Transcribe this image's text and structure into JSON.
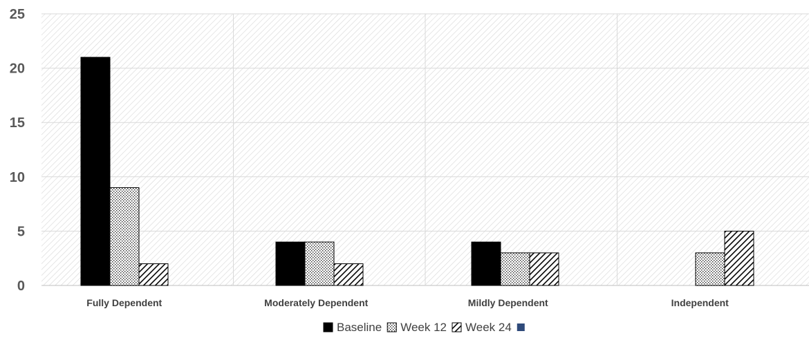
{
  "chart_data": {
    "type": "bar",
    "title": "",
    "xlabel": "",
    "ylabel": "",
    "categories": [
      "Fully Dependent",
      "Moderately Dependent",
      "Mildly Dependent",
      "Independent"
    ],
    "series": [
      {
        "name": "Baseline",
        "values": [
          21,
          4,
          4,
          0
        ],
        "pattern": "solid",
        "color": "#000000"
      },
      {
        "name": "Week 12",
        "values": [
          9,
          4,
          3,
          3
        ],
        "pattern": "dots",
        "color": "#000000"
      },
      {
        "name": "Week 24",
        "values": [
          2,
          2,
          3,
          5
        ],
        "pattern": "hatch",
        "color": "#000000"
      }
    ],
    "ylim": [
      0,
      25
    ],
    "yticks": [
      0,
      5,
      10,
      15,
      20,
      25
    ],
    "grid": true,
    "legend": {
      "position": "bottom",
      "extra_swatch_color": "#2f4a7a"
    }
  }
}
